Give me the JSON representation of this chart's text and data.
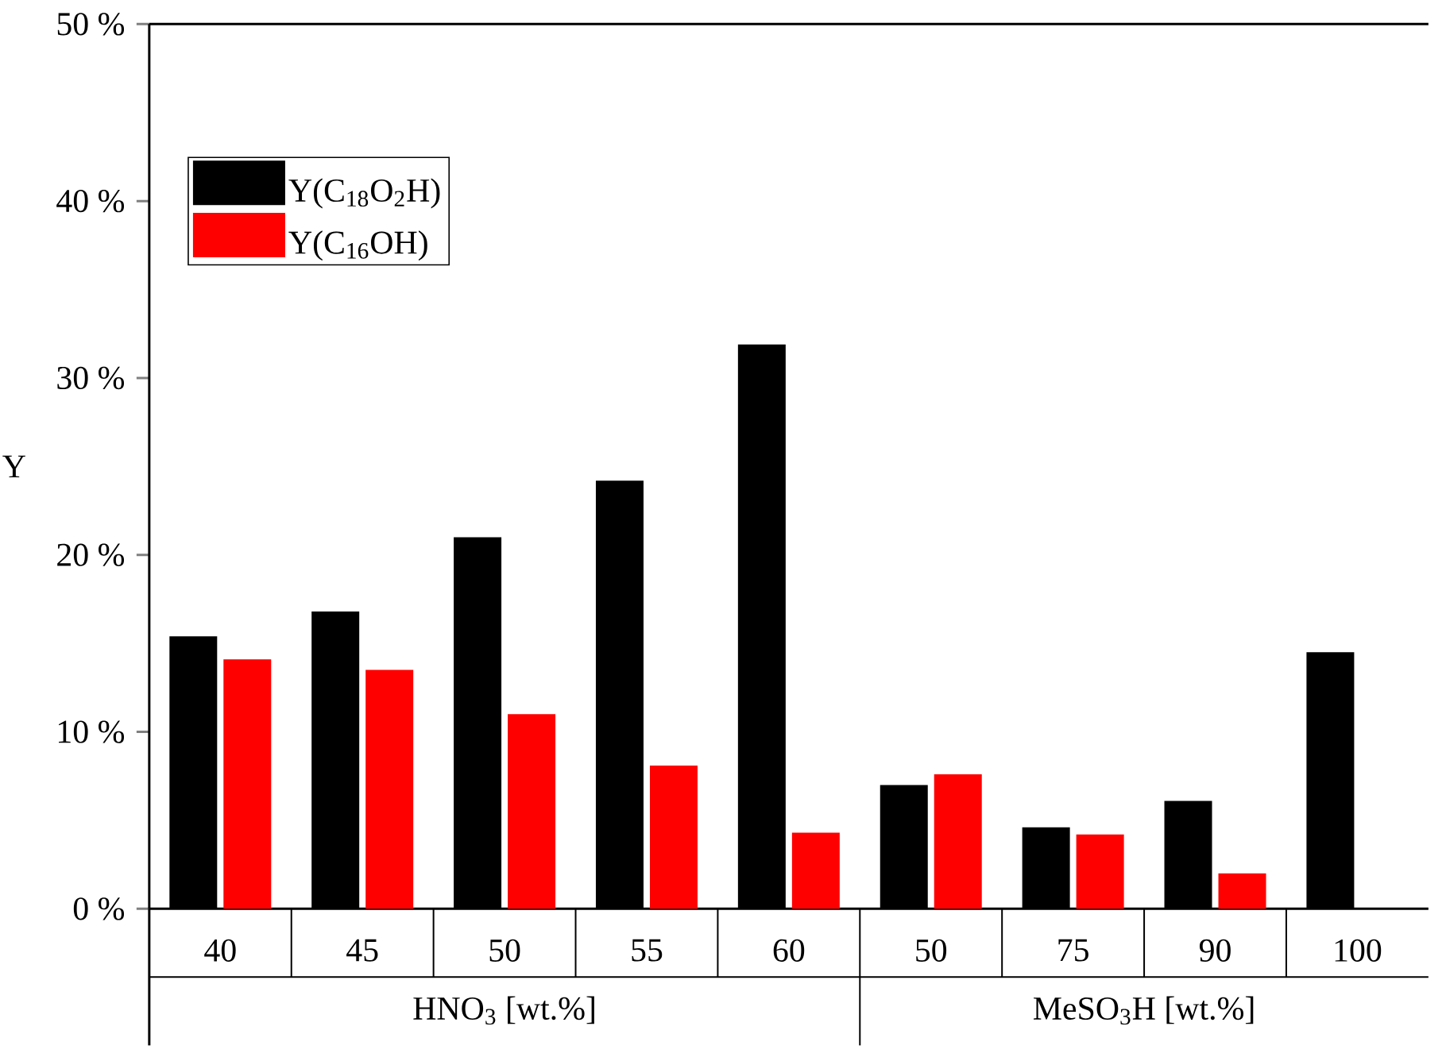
{
  "chart_data": {
    "type": "bar",
    "ylabel": "Y",
    "categories": [
      "40",
      "45",
      "50",
      "55",
      "60",
      "50",
      "75",
      "90",
      "100"
    ],
    "series": [
      {
        "name": "Y(C$_{18}$O$_{2}$H)",
        "color": "#000000",
        "values": [
          15.4,
          16.8,
          21.0,
          24.2,
          31.9,
          7.0,
          4.6,
          6.1,
          14.5
        ]
      },
      {
        "name": "Y(C$_{16}$OH)",
        "color": "#ff0000",
        "values": [
          14.1,
          13.5,
          11.0,
          8.1,
          4.3,
          7.6,
          4.2,
          2.0,
          null
        ]
      }
    ],
    "ylim": [
      0,
      50
    ],
    "yticks": [
      {
        "value": 0,
        "label": "0 %"
      },
      {
        "value": 10,
        "label": "10 %"
      },
      {
        "value": 20,
        "label": "20 %"
      },
      {
        "value": 30,
        "label": "30 %"
      },
      {
        "value": 40,
        "label": "40 %"
      },
      {
        "value": 50,
        "label": "50 %"
      }
    ],
    "annotations": [
      "HNO$_{3}$ [wt.%]",
      "MeSO$_{3}$H [wt.%]"
    ],
    "legend": "top left",
    "grid": false
  }
}
